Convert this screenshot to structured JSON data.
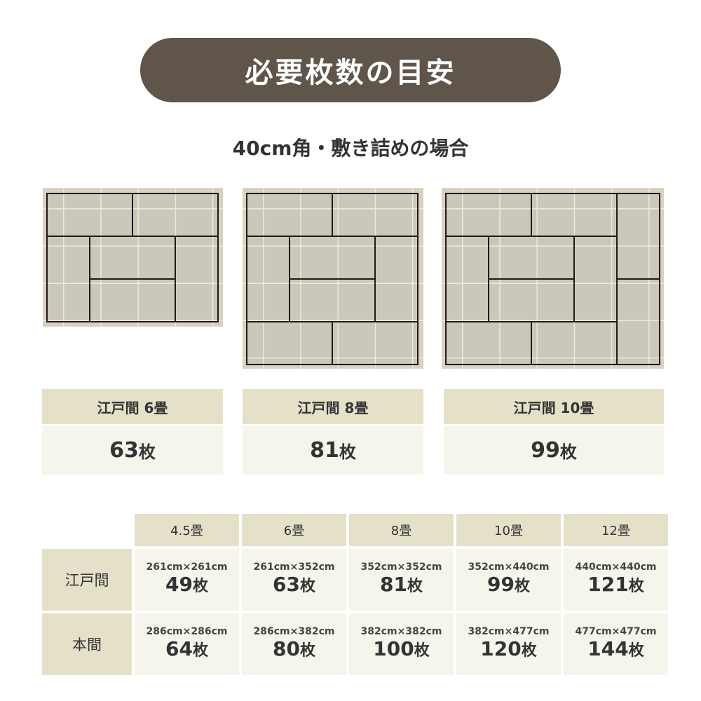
{
  "title": "必要枚数の目安",
  "subtitle": "40cm角・敷き詰めの場合",
  "colors": {
    "title_bg": "#60554b",
    "header_bg": "#e5e1c9",
    "cell_bg": "#f6f5ec",
    "mat": "#cbc7bb",
    "mat_frame": "#d9d1c0"
  },
  "layouts": [
    {
      "label": "江戸間 6畳",
      "count": "63",
      "unit": "枚"
    },
    {
      "label": "江戸間 8畳",
      "count": "81",
      "unit": "枚"
    },
    {
      "label": "江戸間 10畳",
      "count": "99",
      "unit": "枚"
    }
  ],
  "table": {
    "columns": [
      "4.5畳",
      "6畳",
      "8畳",
      "10畳",
      "12畳"
    ],
    "rows": [
      {
        "label": "江戸間",
        "cells": [
          {
            "size": "261cm×261cm",
            "count": "49",
            "unit": "枚"
          },
          {
            "size": "261cm×352cm",
            "count": "63",
            "unit": "枚"
          },
          {
            "size": "352cm×352cm",
            "count": "81",
            "unit": "枚"
          },
          {
            "size": "352cm×440cm",
            "count": "99",
            "unit": "枚"
          },
          {
            "size": "440cm×440cm",
            "count": "121",
            "unit": "枚"
          }
        ]
      },
      {
        "label": "本間",
        "cells": [
          {
            "size": "286cm×286cm",
            "count": "64",
            "unit": "枚"
          },
          {
            "size": "286cm×382cm",
            "count": "80",
            "unit": "枚"
          },
          {
            "size": "382cm×382cm",
            "count": "100",
            "unit": "枚"
          },
          {
            "size": "382cm×477cm",
            "count": "120",
            "unit": "枚"
          },
          {
            "size": "477cm×477cm",
            "count": "144",
            "unit": "枚"
          }
        ]
      }
    ]
  }
}
